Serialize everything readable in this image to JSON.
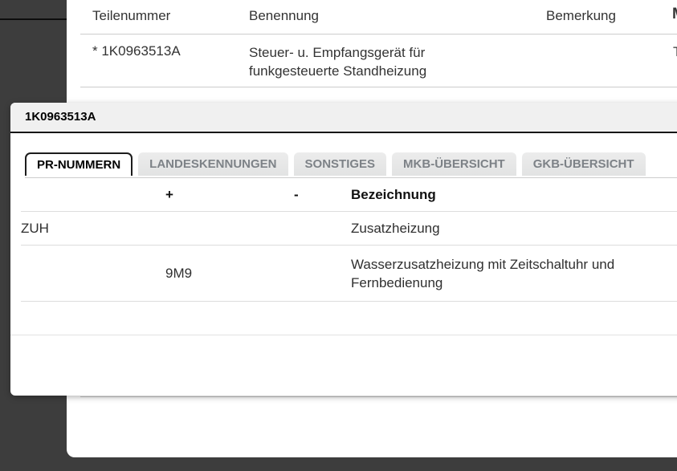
{
  "page": {
    "parts_table": {
      "headers": {
        "teilenummer": "Teilenummer",
        "benennung": "Benennung",
        "bemerkung": "Bemerkung",
        "clipped_column": "M"
      },
      "row": {
        "teilenummer": "* 1K0963513A",
        "benennung": "Steuer- u. Empfangsgerät für funkgesteuerte Standheizung",
        "bemerkung": "",
        "clipped_text": "T"
      }
    }
  },
  "dialog": {
    "title": "1K0963513A",
    "tabs": [
      {
        "label": "PR-NUMMERN",
        "active": true
      },
      {
        "label": "LANDESKENNUNGEN",
        "active": false
      },
      {
        "label": "SONSTIGES",
        "active": false
      },
      {
        "label": "MKB-ÜBERSICHT",
        "active": false
      },
      {
        "label": "GKB-ÜBERSICHT",
        "active": false
      }
    ],
    "pr_table": {
      "headers": [
        "",
        "+",
        "-",
        "Bezeichnung"
      ],
      "rows": [
        [
          "ZUH",
          "",
          "",
          "Zusatzheizung"
        ],
        [
          "",
          "9M9",
          "",
          "Wasserzusatzheizung mit Zeitschaltuhr und Fernbedienung"
        ]
      ]
    }
  },
  "colors": {
    "page_background": "#3d3d3d",
    "panel_background": "#ffffff",
    "dialog_header_background": "#f0f0f0",
    "inactive_tab_background": "#e8e9e9",
    "inactive_tab_text": "#7d8287",
    "active_tab_border": "#1c1c1c",
    "row_border": "#dddddd",
    "text": "#333333"
  }
}
